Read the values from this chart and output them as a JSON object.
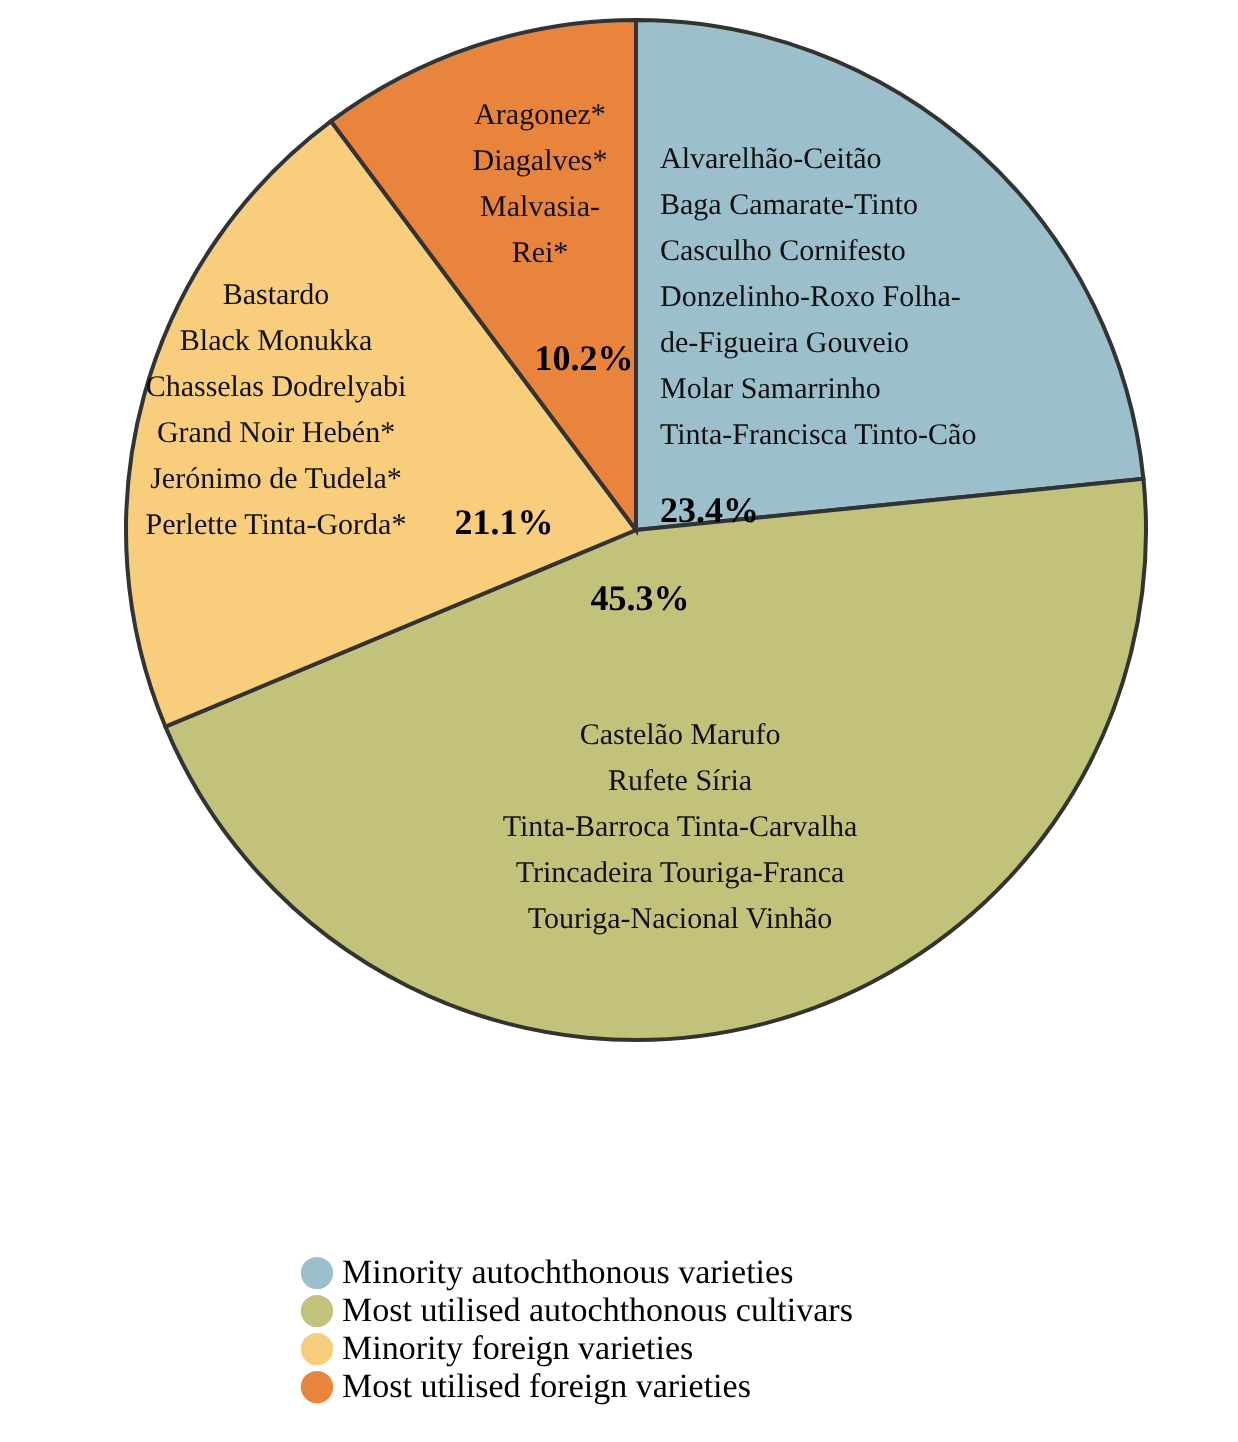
{
  "chart_data": {
    "type": "pie",
    "categories": [
      "Minority autochthonous varieties",
      "Most utilised autochthonous cultivars",
      "Minority foreign varieties",
      "Most utilised foreign varieties"
    ],
    "values": [
      23.4,
      45.3,
      21.1,
      10.2
    ],
    "colors": [
      "#9bbfcb",
      "#c3c27a",
      "#f8cd7c",
      "#e9843c"
    ],
    "value_labels": [
      "23.4%",
      "45.3%",
      "21.1%",
      "10.2%"
    ],
    "legend": "bottom",
    "annotations": [
      "Alvarelhão-Ceitão\nBaga  Camarate-Tinto\nCasculho   Cornifesto\nDonzelinho-Roxo   Folha-\nde-Figueira   Gouveio\nMolar  Samarrinho\nTinta-Francisca  Tinto-Cão",
      "Castelão         Marufo\nRufete        Síria\nTinta-Barroca      Tinta-Carvalha\nTrincadeira      Touriga-Franca\nTouriga-Nacional        Vinhão",
      "Bastardo\nBlack Monukka\nChasselas  Dodrelyabi\nGrand Noir  Hebén*\nJerónimo de Tudela*\nPerlette  Tinta-Gorda*",
      "Aragonez*\nDiagalves*\nMalvasia-\nRei*"
    ]
  }
}
